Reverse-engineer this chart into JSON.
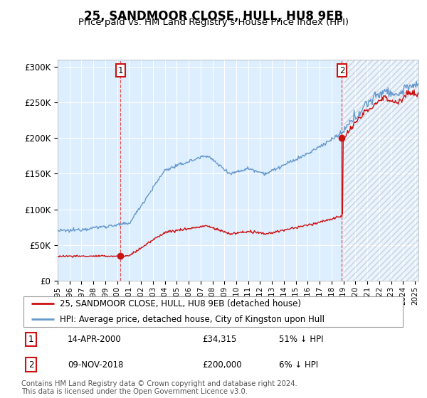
{
  "title": "25, SANDMOOR CLOSE, HULL, HU8 9EB",
  "subtitle": "Price paid vs. HM Land Registry's House Price Index (HPI)",
  "ylim": [
    0,
    310000
  ],
  "yticks": [
    0,
    50000,
    100000,
    150000,
    200000,
    250000,
    300000
  ],
  "ytick_labels": [
    "£0",
    "£50K",
    "£100K",
    "£150K",
    "£200K",
    "£250K",
    "£300K"
  ],
  "plot_bg_color": "#ddeeff",
  "hpi_color": "#6699cc",
  "price_color": "#cc1111",
  "vline_color": "#dd4444",
  "t1_year": 2000.28,
  "t2_year": 2018.87,
  "price1": 34315,
  "price2": 200000,
  "legend_property": "25, SANDMOOR CLOSE, HULL, HU8 9EB (detached house)",
  "legend_hpi": "HPI: Average price, detached house, City of Kingston upon Hull",
  "table_row1_label": "1",
  "table_row1_date": "14-APR-2000",
  "table_row1_price": "£34,315",
  "table_row1_hpi": "51% ↓ HPI",
  "table_row2_label": "2",
  "table_row2_date": "09-NOV-2018",
  "table_row2_price": "£200,000",
  "table_row2_hpi": "6% ↓ HPI",
  "footnote": "Contains HM Land Registry data © Crown copyright and database right 2024.\nThis data is licensed under the Open Government Licence v3.0.",
  "xlim_start": 1995,
  "xlim_end": 2025.3
}
